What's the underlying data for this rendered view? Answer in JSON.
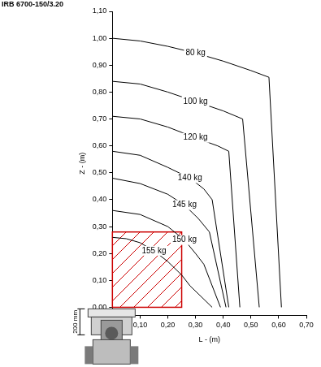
{
  "chart_data": {
    "type": "line",
    "title": "IRB 6700-150/3.20",
    "x_label": "L - (m)",
    "y_label": "Z - (m)",
    "xlim": [
      0,
      0.7
    ],
    "xticks": [
      {
        "value": 0.1,
        "label": "0,10"
      },
      {
        "value": 0.2,
        "label": "0,20"
      },
      {
        "value": 0.3,
        "label": "0,30"
      },
      {
        "value": 0.4,
        "label": "0,40"
      },
      {
        "value": 0.5,
        "label": "0,50"
      },
      {
        "value": 0.6,
        "label": "0,60"
      },
      {
        "value": 0.7,
        "label": "0,70"
      }
    ],
    "ylim": [
      -0.03,
      1.1
    ],
    "yticks": [
      {
        "value": 0,
        "label": "0,00"
      },
      {
        "value": 0.1,
        "label": "0,10"
      },
      {
        "value": 0.2,
        "label": "0,20"
      },
      {
        "value": 0.3,
        "label": "0,30"
      },
      {
        "value": 0.4,
        "label": "0,40"
      },
      {
        "value": 0.5,
        "label": "0,50"
      },
      {
        "value": 0.6,
        "label": "0,60"
      },
      {
        "value": 0.7,
        "label": "0,70"
      },
      {
        "value": 0.8,
        "label": "0,80"
      },
      {
        "value": 0.9,
        "label": "0,90"
      },
      {
        "value": 1.0,
        "label": "1,00"
      },
      {
        "value": 1.1,
        "label": "1,10"
      }
    ],
    "grid": false,
    "series": [
      {
        "name": "80 kg",
        "color": "#000000",
        "x": [
          0,
          0.1,
          0.2,
          0.3,
          0.4,
          0.5,
          0.565,
          0.61
        ],
        "values": [
          1.0,
          0.99,
          0.97,
          0.945,
          0.915,
          0.88,
          0.855,
          0
        ]
      },
      {
        "name": "100 kg",
        "color": "#000000",
        "x": [
          0,
          0.1,
          0.2,
          0.3,
          0.4,
          0.47,
          0.53
        ],
        "values": [
          0.84,
          0.83,
          0.8,
          0.765,
          0.73,
          0.7,
          0
        ]
      },
      {
        "name": "120 kg",
        "color": "#000000",
        "x": [
          0,
          0.1,
          0.2,
          0.3,
          0.38,
          0.42,
          0.46
        ],
        "values": [
          0.71,
          0.7,
          0.67,
          0.63,
          0.6,
          0.58,
          0
        ]
      },
      {
        "name": "140 kg",
        "color": "#000000",
        "x": [
          0,
          0.1,
          0.2,
          0.28,
          0.33,
          0.36,
          0.42
        ],
        "values": [
          0.58,
          0.565,
          0.52,
          0.48,
          0.44,
          0.4,
          0
        ]
      },
      {
        "name": "145 kg",
        "color": "#000000",
        "x": [
          0,
          0.1,
          0.2,
          0.26,
          0.31,
          0.35,
          0.41
        ],
        "values": [
          0.48,
          0.46,
          0.42,
          0.38,
          0.33,
          0.28,
          0
        ]
      },
      {
        "name": "150 kg",
        "color": "#000000",
        "x": [
          0,
          0.1,
          0.2,
          0.26,
          0.3,
          0.33,
          0.39
        ],
        "values": [
          0.36,
          0.345,
          0.3,
          0.25,
          0.2,
          0.16,
          0
        ]
      },
      {
        "name": "155 kg",
        "color": "#000000",
        "x": [
          0,
          0.05,
          0.1,
          0.15,
          0.2,
          0.25,
          0.28,
          0.36
        ],
        "values": [
          0.26,
          0.255,
          0.24,
          0.21,
          0.17,
          0.12,
          0.08,
          0
        ]
      }
    ],
    "region": {
      "xlim": [
        0,
        0.25
      ],
      "ylim": [
        0,
        0.28
      ],
      "color": "#cc0000"
    },
    "annotations": [
      {
        "text": "200 mm"
      }
    ]
  }
}
